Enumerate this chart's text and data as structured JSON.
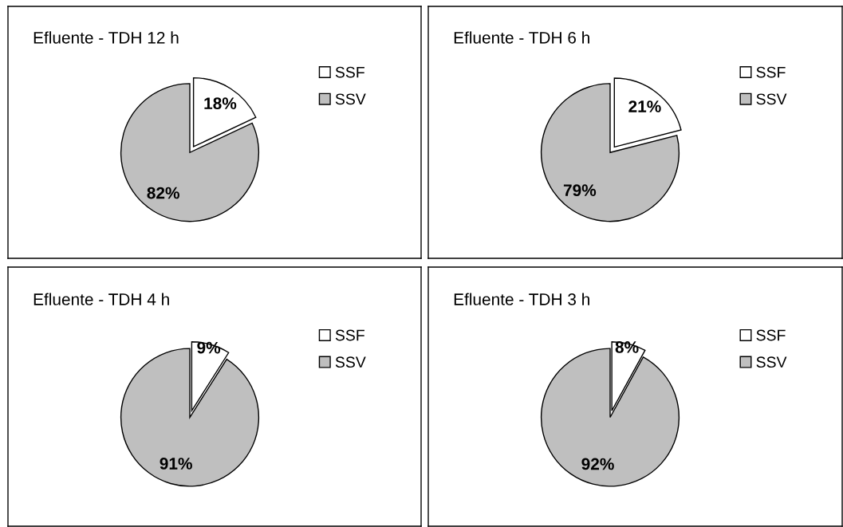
{
  "chart_data": [
    {
      "type": "pie",
      "title": "Efluente - TDH 12 h",
      "categories": [
        "SSF",
        "SSV"
      ],
      "values": [
        18,
        82
      ],
      "colors": [
        "#ffffff",
        "#bfbfbf"
      ],
      "value_labels": [
        "18%",
        "82%"
      ],
      "legend": "right"
    },
    {
      "type": "pie",
      "title": "Efluente - TDH 6 h",
      "categories": [
        "SSF",
        "SSV"
      ],
      "values": [
        21,
        79
      ],
      "colors": [
        "#ffffff",
        "#bfbfbf"
      ],
      "value_labels": [
        "21%",
        "79%"
      ],
      "legend": "right"
    },
    {
      "type": "pie",
      "title": "Efluente - TDH 4 h",
      "categories": [
        "SSF",
        "SSV"
      ],
      "values": [
        9,
        91
      ],
      "colors": [
        "#ffffff",
        "#bfbfbf"
      ],
      "value_labels": [
        "9%",
        "91%"
      ],
      "legend": "right"
    },
    {
      "type": "pie",
      "title": "Efluente - TDH 3 h",
      "categories": [
        "SSF",
        "SSV"
      ],
      "values": [
        8,
        92
      ],
      "colors": [
        "#ffffff",
        "#bfbfbf"
      ],
      "value_labels": [
        "8%",
        "92%"
      ],
      "legend": "right"
    }
  ]
}
